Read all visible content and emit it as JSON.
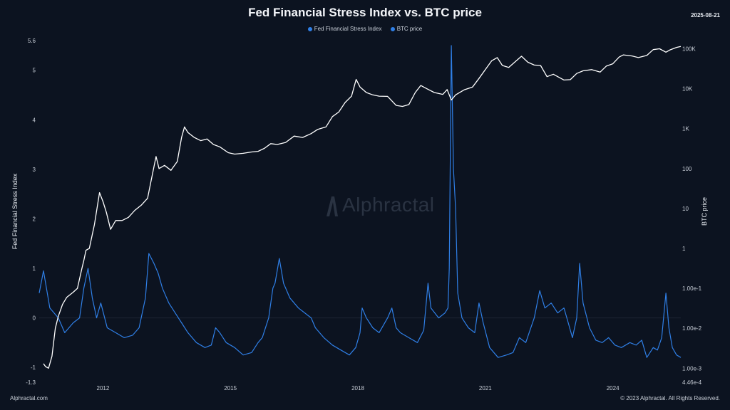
{
  "header": {
    "title": "Fed Financial Stress Index vs. BTC price",
    "date": "2025-08-21"
  },
  "footer": {
    "left": "Alphractal.com",
    "right": "© 2023 Alphractal. All Rights Reserved."
  },
  "watermark": "Alphractal",
  "colors": {
    "background": "#0c1320",
    "stress_line": "#2f7fe6",
    "btc_line": "#ffffff"
  },
  "chart_data": {
    "type": "line",
    "title": "Fed Financial Stress Index vs. BTC price",
    "legend": {
      "placement": "top-center",
      "entries": [
        "Fed Financial Stress Index",
        "BTC price"
      ]
    },
    "x_axis": {
      "ticks": [
        "2012",
        "2015",
        "2018",
        "2021",
        "2024"
      ],
      "range": [
        2010.5,
        2025.6
      ]
    },
    "y_left": {
      "label": "Fed Financial Stress Index",
      "ticks": [
        "5.6",
        "5",
        "4",
        "3",
        "2",
        "1",
        "0",
        "-1",
        "-1.3"
      ],
      "range": [
        -1.3,
        5.6
      ]
    },
    "y_right": {
      "label": "BTC price",
      "scale": "log",
      "ticks": [
        "100K",
        "10K",
        "1K",
        "100",
        "10",
        "1",
        "1.00e-1",
        "1.00e-2",
        "1.00e-3",
        "4.46e-4"
      ],
      "range": [
        0.000446,
        160000
      ]
    },
    "grid": false,
    "series": [
      {
        "name": "Fed Financial Stress Index",
        "axis": "left",
        "points": [
          [
            2010.5,
            0.5
          ],
          [
            2010.6,
            0.95
          ],
          [
            2010.75,
            0.2
          ],
          [
            2010.95,
            0.0
          ],
          [
            2011.1,
            -0.3
          ],
          [
            2011.3,
            -0.1
          ],
          [
            2011.45,
            0.0
          ],
          [
            2011.55,
            0.6
          ],
          [
            2011.65,
            1.0
          ],
          [
            2011.75,
            0.4
          ],
          [
            2011.85,
            0.0
          ],
          [
            2011.95,
            0.3
          ],
          [
            2012.1,
            -0.2
          ],
          [
            2012.3,
            -0.3
          ],
          [
            2012.5,
            -0.4
          ],
          [
            2012.7,
            -0.35
          ],
          [
            2012.85,
            -0.2
          ],
          [
            2013.0,
            0.4
          ],
          [
            2013.08,
            1.3
          ],
          [
            2013.2,
            1.1
          ],
          [
            2013.3,
            0.9
          ],
          [
            2013.4,
            0.6
          ],
          [
            2013.55,
            0.3
          ],
          [
            2013.7,
            0.1
          ],
          [
            2013.85,
            -0.1
          ],
          [
            2014.0,
            -0.3
          ],
          [
            2014.2,
            -0.5
          ],
          [
            2014.4,
            -0.6
          ],
          [
            2014.55,
            -0.55
          ],
          [
            2014.65,
            -0.2
          ],
          [
            2014.75,
            -0.3
          ],
          [
            2014.9,
            -0.5
          ],
          [
            2015.1,
            -0.6
          ],
          [
            2015.3,
            -0.75
          ],
          [
            2015.5,
            -0.7
          ],
          [
            2015.65,
            -0.5
          ],
          [
            2015.75,
            -0.4
          ],
          [
            2015.9,
            0.0
          ],
          [
            2016.0,
            0.6
          ],
          [
            2016.05,
            0.7
          ],
          [
            2016.15,
            1.2
          ],
          [
            2016.25,
            0.7
          ],
          [
            2016.4,
            0.4
          ],
          [
            2016.6,
            0.2
          ],
          [
            2016.75,
            0.1
          ],
          [
            2016.9,
            0.0
          ],
          [
            2017.0,
            -0.2
          ],
          [
            2017.2,
            -0.4
          ],
          [
            2017.4,
            -0.55
          ],
          [
            2017.6,
            -0.65
          ],
          [
            2017.8,
            -0.75
          ],
          [
            2017.95,
            -0.6
          ],
          [
            2018.05,
            -0.3
          ],
          [
            2018.1,
            0.2
          ],
          [
            2018.2,
            0.0
          ],
          [
            2018.35,
            -0.2
          ],
          [
            2018.5,
            -0.3
          ],
          [
            2018.7,
            0.0
          ],
          [
            2018.8,
            0.2
          ],
          [
            2018.9,
            -0.2
          ],
          [
            2019.0,
            -0.3
          ],
          [
            2019.2,
            -0.4
          ],
          [
            2019.4,
            -0.5
          ],
          [
            2019.55,
            -0.25
          ],
          [
            2019.65,
            0.7
          ],
          [
            2019.72,
            0.2
          ],
          [
            2019.9,
            0.0
          ],
          [
            2020.05,
            0.1
          ],
          [
            2020.12,
            0.2
          ],
          [
            2020.15,
            1.0
          ],
          [
            2020.2,
            5.5
          ],
          [
            2020.25,
            3.0
          ],
          [
            2020.3,
            2.2
          ],
          [
            2020.35,
            0.5
          ],
          [
            2020.45,
            0.0
          ],
          [
            2020.6,
            -0.2
          ],
          [
            2020.75,
            -0.3
          ],
          [
            2020.85,
            0.3
          ],
          [
            2020.95,
            -0.1
          ],
          [
            2021.1,
            -0.6
          ],
          [
            2021.3,
            -0.8
          ],
          [
            2021.5,
            -0.75
          ],
          [
            2021.65,
            -0.7
          ],
          [
            2021.8,
            -0.4
          ],
          [
            2021.95,
            -0.5
          ],
          [
            2022.15,
            0.0
          ],
          [
            2022.28,
            0.55
          ],
          [
            2022.4,
            0.2
          ],
          [
            2022.55,
            0.3
          ],
          [
            2022.7,
            0.1
          ],
          [
            2022.85,
            0.2
          ],
          [
            2022.95,
            -0.1
          ],
          [
            2023.05,
            -0.4
          ],
          [
            2023.15,
            0.0
          ],
          [
            2023.22,
            1.1
          ],
          [
            2023.3,
            0.3
          ],
          [
            2023.45,
            -0.2
          ],
          [
            2023.6,
            -0.45
          ],
          [
            2023.75,
            -0.5
          ],
          [
            2023.9,
            -0.4
          ],
          [
            2024.05,
            -0.55
          ],
          [
            2024.2,
            -0.6
          ],
          [
            2024.4,
            -0.5
          ],
          [
            2024.55,
            -0.55
          ],
          [
            2024.68,
            -0.45
          ],
          [
            2024.8,
            -0.8
          ],
          [
            2024.95,
            -0.6
          ],
          [
            2025.05,
            -0.65
          ],
          [
            2025.15,
            -0.4
          ],
          [
            2025.25,
            0.5
          ],
          [
            2025.32,
            -0.2
          ],
          [
            2025.4,
            -0.6
          ],
          [
            2025.5,
            -0.75
          ],
          [
            2025.6,
            -0.8
          ]
        ]
      },
      {
        "name": "BTC price",
        "axis": "right",
        "points": [
          [
            2010.6,
            0.0013
          ],
          [
            2010.65,
            0.0011
          ],
          [
            2010.72,
            0.001
          ],
          [
            2010.8,
            0.002
          ],
          [
            2010.88,
            0.01
          ],
          [
            2010.95,
            0.02
          ],
          [
            2011.05,
            0.04
          ],
          [
            2011.15,
            0.06
          ],
          [
            2011.3,
            0.08
          ],
          [
            2011.4,
            0.1
          ],
          [
            2011.5,
            0.3
          ],
          [
            2011.55,
            0.5
          ],
          [
            2011.6,
            0.9
          ],
          [
            2011.68,
            1.0
          ],
          [
            2011.8,
            4
          ],
          [
            2011.92,
            25
          ],
          [
            2012.0,
            15
          ],
          [
            2012.08,
            8
          ],
          [
            2012.18,
            3.0
          ],
          [
            2012.3,
            5
          ],
          [
            2012.45,
            5
          ],
          [
            2012.6,
            6
          ],
          [
            2012.75,
            9
          ],
          [
            2012.9,
            12
          ],
          [
            2013.05,
            18
          ],
          [
            2013.15,
            60
          ],
          [
            2013.25,
            200
          ],
          [
            2013.32,
            100
          ],
          [
            2013.45,
            120
          ],
          [
            2013.6,
            90
          ],
          [
            2013.75,
            150
          ],
          [
            2013.85,
            600
          ],
          [
            2013.92,
            1100
          ],
          [
            2014.0,
            800
          ],
          [
            2014.15,
            600
          ],
          [
            2014.3,
            500
          ],
          [
            2014.45,
            550
          ],
          [
            2014.6,
            400
          ],
          [
            2014.75,
            350
          ],
          [
            2014.95,
            250
          ],
          [
            2015.1,
            230
          ],
          [
            2015.3,
            240
          ],
          [
            2015.5,
            260
          ],
          [
            2015.65,
            270
          ],
          [
            2015.8,
            320
          ],
          [
            2015.95,
            420
          ],
          [
            2016.1,
            400
          ],
          [
            2016.3,
            450
          ],
          [
            2016.5,
            650
          ],
          [
            2016.7,
            600
          ],
          [
            2016.9,
            750
          ],
          [
            2017.05,
            950
          ],
          [
            2017.25,
            1100
          ],
          [
            2017.4,
            2000
          ],
          [
            2017.55,
            2600
          ],
          [
            2017.7,
            4500
          ],
          [
            2017.85,
            6500
          ],
          [
            2017.96,
            17000
          ],
          [
            2018.05,
            11000
          ],
          [
            2018.2,
            8000
          ],
          [
            2018.35,
            7000
          ],
          [
            2018.5,
            6500
          ],
          [
            2018.7,
            6400
          ],
          [
            2018.9,
            3800
          ],
          [
            2019.05,
            3600
          ],
          [
            2019.2,
            4000
          ],
          [
            2019.35,
            8000
          ],
          [
            2019.48,
            12000
          ],
          [
            2019.62,
            10000
          ],
          [
            2019.8,
            8000
          ],
          [
            2020.0,
            7200
          ],
          [
            2020.1,
            9500
          ],
          [
            2020.2,
            5200
          ],
          [
            2020.3,
            7000
          ],
          [
            2020.5,
            9300
          ],
          [
            2020.7,
            11000
          ],
          [
            2020.85,
            18000
          ],
          [
            2021.0,
            30000
          ],
          [
            2021.15,
            50000
          ],
          [
            2021.28,
            60000
          ],
          [
            2021.4,
            38000
          ],
          [
            2021.55,
            34000
          ],
          [
            2021.7,
            47000
          ],
          [
            2021.85,
            65000
          ],
          [
            2022.0,
            46000
          ],
          [
            2022.15,
            39000
          ],
          [
            2022.3,
            38000
          ],
          [
            2022.45,
            20000
          ],
          [
            2022.6,
            23000
          ],
          [
            2022.85,
            16500
          ],
          [
            2023.0,
            16800
          ],
          [
            2023.15,
            24000
          ],
          [
            2023.3,
            28000
          ],
          [
            2023.5,
            30000
          ],
          [
            2023.7,
            26000
          ],
          [
            2023.85,
            37000
          ],
          [
            2024.0,
            42000
          ],
          [
            2024.15,
            62000
          ],
          [
            2024.25,
            70000
          ],
          [
            2024.45,
            66000
          ],
          [
            2024.6,
            60000
          ],
          [
            2024.8,
            68000
          ],
          [
            2024.95,
            95000
          ],
          [
            2025.1,
            100000
          ],
          [
            2025.25,
            82000
          ],
          [
            2025.35,
            94000
          ],
          [
            2025.5,
            108000
          ],
          [
            2025.6,
            114000
          ]
        ]
      }
    ]
  }
}
